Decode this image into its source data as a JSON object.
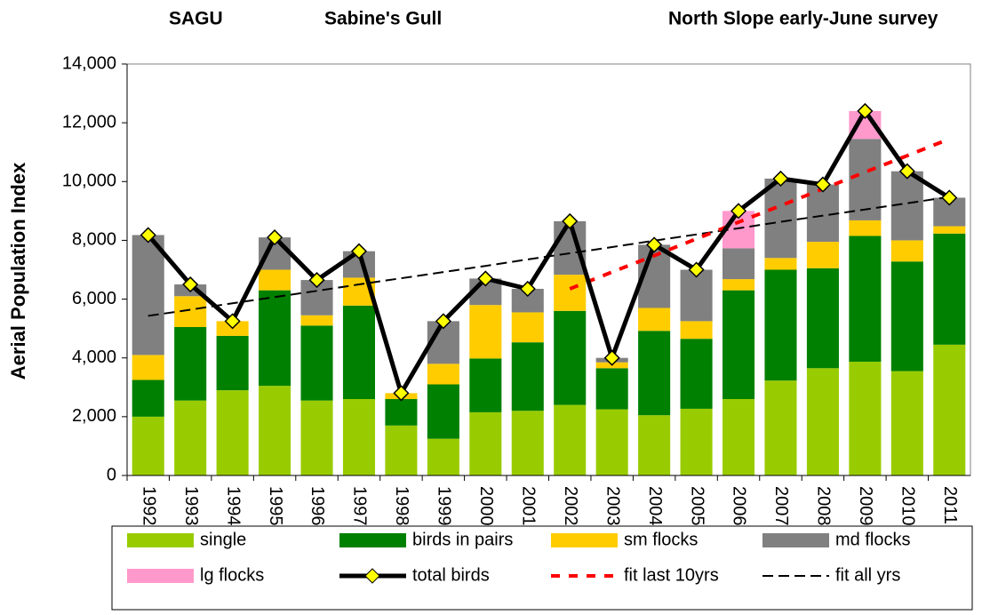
{
  "chart_data": {
    "type": "bar",
    "stacked": true,
    "titles": [
      "SAGU",
      "Sabine's Gull",
      "North Slope early-June survey"
    ],
    "ylabel": "Aerial Population Index",
    "categories": [
      "1992",
      "1993",
      "1994",
      "1995",
      "1996",
      "1997",
      "1998",
      "1999",
      "2000",
      "2001",
      "2002",
      "2003",
      "2004",
      "2005",
      "2006",
      "2007",
      "2008",
      "2009",
      "2010",
      "2011"
    ],
    "series": [
      {
        "name": "single",
        "color": "#99cc00",
        "values": [
          2000,
          2550,
          2900,
          3050,
          2550,
          2600,
          1700,
          1250,
          2150,
          2200,
          2400,
          2250,
          2050,
          2270,
          2600,
          3230,
          3650,
          3870,
          3550,
          4450
        ]
      },
      {
        "name": "birds in pairs",
        "color": "#008000",
        "values": [
          1250,
          2500,
          1850,
          3250,
          2550,
          3180,
          900,
          1850,
          1830,
          2330,
          3200,
          1400,
          2870,
          2380,
          3700,
          3770,
          3400,
          4280,
          3730,
          3780
        ]
      },
      {
        "name": "sm flocks",
        "color": "#ffcc00",
        "values": [
          850,
          1050,
          500,
          700,
          350,
          950,
          200,
          700,
          1820,
          1020,
          1230,
          200,
          780,
          600,
          380,
          400,
          900,
          530,
          720,
          250
        ]
      },
      {
        "name": "md flocks",
        "color": "#808080",
        "values": [
          4080,
          400,
          0,
          1100,
          1200,
          900,
          0,
          1450,
          900,
          800,
          1820,
          150,
          2150,
          1750,
          1050,
          2700,
          1950,
          2770,
          2350,
          970
        ]
      },
      {
        "name": "lg flocks",
        "color": "#ff99cc",
        "values": [
          0,
          0,
          0,
          0,
          0,
          0,
          0,
          0,
          0,
          0,
          0,
          0,
          0,
          0,
          1270,
          0,
          0,
          950,
          0,
          0
        ]
      }
    ],
    "lines": [
      {
        "name": "total birds",
        "type": "line",
        "color": "#000000",
        "marker_color": "#ffff00",
        "values": [
          8180,
          6500,
          5250,
          8100,
          6650,
          7630,
          2800,
          5250,
          6700,
          6350,
          8650,
          4000,
          7850,
          7000,
          9000,
          10100,
          9900,
          12400,
          10350,
          9450
        ]
      },
      {
        "name": "fit last 10yrs",
        "type": "dashed",
        "color": "#ff0000",
        "values": [
          null,
          null,
          null,
          null,
          null,
          null,
          null,
          null,
          null,
          null,
          6350,
          6920,
          7480,
          8050,
          8620,
          9180,
          9750,
          10320,
          10880,
          11450
        ]
      },
      {
        "name": "fit all yrs",
        "type": "dashed",
        "color": "#000000",
        "values": [
          5430,
          5640,
          5860,
          6070,
          6280,
          6500,
          6710,
          6920,
          7130,
          7350,
          7560,
          7770,
          7990,
          8200,
          8410,
          8630,
          8840,
          9050,
          9260,
          9480
        ]
      }
    ],
    "ylim": [
      0,
      14000
    ],
    "yticks": [
      0,
      {
        "value": 2000,
        "label": "2,000"
      },
      {
        "value": 4000,
        "label": "4,000"
      },
      {
        "value": 6000,
        "label": "6,000"
      },
      {
        "value": 8000,
        "label": "8,000"
      },
      {
        "value": 10000,
        "label": "10,000"
      },
      {
        "value": 12000,
        "label": "12,000"
      },
      {
        "value": 14000,
        "label": "14,000"
      }
    ],
    "legend": "bottom"
  }
}
